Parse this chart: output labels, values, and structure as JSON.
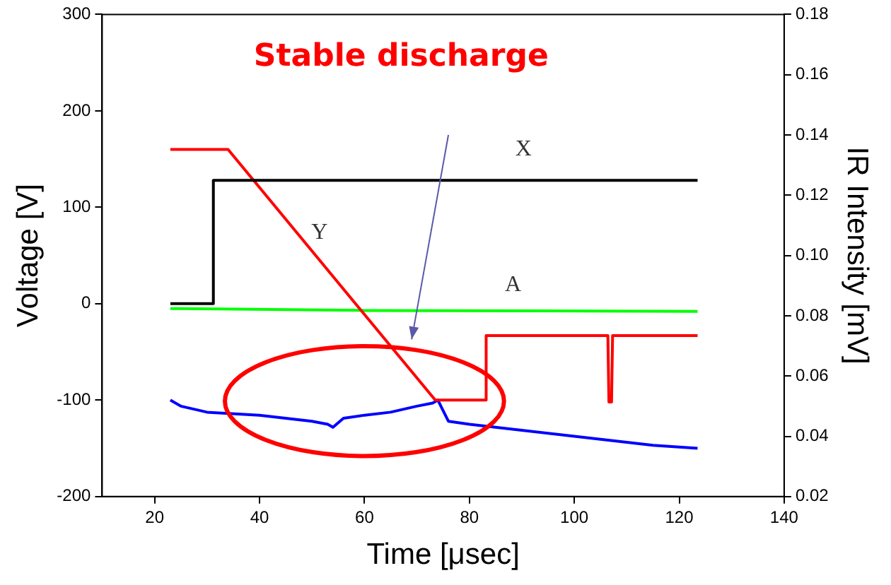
{
  "chart_data": {
    "type": "line",
    "xlabel": "Time [μsec]",
    "ylabel": "Voltage [V]",
    "y2label": "IR Intensity [mV]",
    "annotations": [
      "Stable discharge"
    ],
    "xlim": [
      10,
      140
    ],
    "xticks": [
      20,
      40,
      60,
      80,
      100,
      120,
      140
    ],
    "ylim": [
      -200,
      300
    ],
    "yticks": [
      -200,
      -100,
      0,
      100,
      200,
      300
    ],
    "y2lim": [
      0.02,
      0.18
    ],
    "y2ticks": [
      0.02,
      0.04,
      0.06,
      0.08,
      {
        "value": 0.1,
        "label": "0.10"
      },
      0.12,
      0.14,
      0.16,
      0.18
    ],
    "grid": false,
    "legend": false,
    "marker": "none",
    "series": [
      {
        "name": "X",
        "color": "#000000",
        "x": [
          23,
          31,
          31.2,
          123.5
        ],
        "values": [
          0,
          0,
          128,
          128
        ]
      },
      {
        "name": "Y",
        "color": "#ff0000",
        "x": [
          23,
          34,
          73.5,
          83,
          83.2,
          106.4,
          106.6,
          107.1,
          107.3,
          123.5
        ],
        "values": [
          160,
          160,
          -100,
          -100,
          -33,
          -33,
          -102,
          -102,
          -33,
          -33
        ]
      },
      {
        "name": "A",
        "color": "#00ff00",
        "x": [
          23,
          60,
          123.5
        ],
        "values": [
          -5,
          -7,
          -8
        ]
      },
      {
        "color": "#0000ff",
        "axis": "y2",
        "x": [
          23,
          25,
          30,
          40,
          50,
          53,
          54,
          56,
          60,
          65,
          70,
          73,
          74,
          76,
          80,
          85,
          90,
          100,
          110,
          115,
          123.5
        ],
        "values": [
          0.052,
          0.05,
          0.048,
          0.047,
          0.045,
          0.044,
          0.043,
          0.046,
          0.047,
          0.048,
          0.05,
          0.051,
          0.052,
          0.045,
          0.044,
          0.043,
          0.042,
          0.04,
          0.038,
          0.037,
          0.036
        ]
      }
    ]
  }
}
